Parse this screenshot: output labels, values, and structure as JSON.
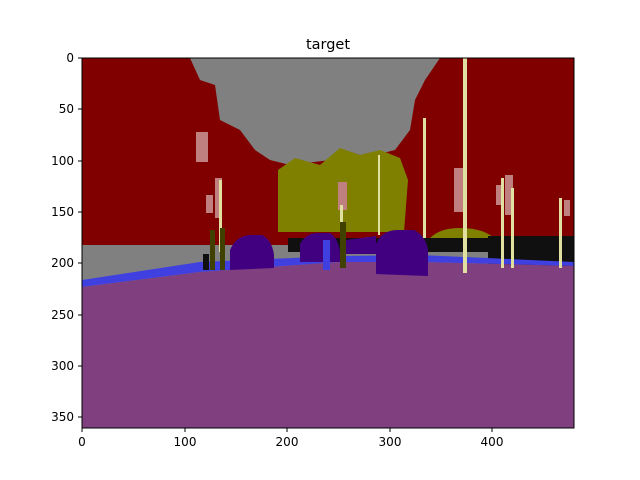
{
  "figure": {
    "title": "target",
    "x_ticks": [
      "0",
      "100",
      "200",
      "300",
      "400"
    ],
    "y_ticks": [
      "0",
      "50",
      "100",
      "150",
      "200",
      "250",
      "300",
      "350"
    ]
  },
  "palette": {
    "sky": "#808080",
    "building": "#800000",
    "vegetation": "#808000",
    "road": "#804080",
    "sidewalk": "#4040e0",
    "car": "#400080",
    "pole": "#e0e0a0",
    "sign": "#c08080",
    "person": "#404000",
    "wall": "#101010"
  }
}
